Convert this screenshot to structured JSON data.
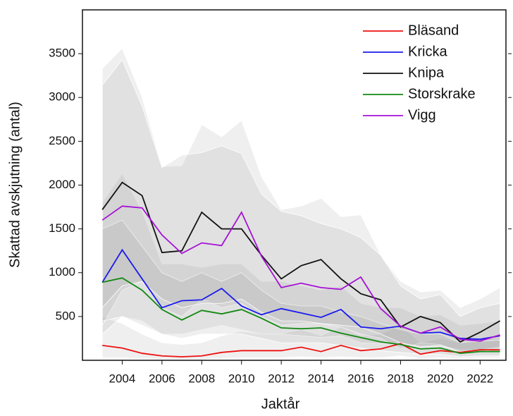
{
  "chart_data": {
    "type": "line",
    "xlabel": "Jaktår",
    "ylabel": "Skattad avskjutning (antal)",
    "x": [
      2003,
      2004,
      2005,
      2006,
      2007,
      2008,
      2009,
      2010,
      2011,
      2012,
      2013,
      2014,
      2015,
      2016,
      2017,
      2018,
      2019,
      2020,
      2021,
      2022,
      2023
    ],
    "xlim": [
      2002,
      2023.3
    ],
    "xticks": [
      2004,
      2006,
      2008,
      2010,
      2012,
      2014,
      2016,
      2018,
      2020,
      2022
    ],
    "ylim": [
      0,
      4000
    ],
    "yticks": [
      500,
      1000,
      1500,
      2000,
      2500,
      3000,
      3500
    ],
    "legend": "upper-right",
    "band_color": "#808080",
    "series": [
      {
        "name": "Bläsand",
        "color": "#ee1111",
        "values": [
          170,
          140,
          80,
          50,
          40,
          50,
          90,
          110,
          110,
          110,
          150,
          100,
          170,
          110,
          130,
          190,
          70,
          110,
          90,
          120,
          120
        ],
        "lower": [
          30,
          30,
          20,
          10,
          10,
          10,
          20,
          30,
          30,
          30,
          40,
          30,
          40,
          30,
          30,
          50,
          20,
          30,
          20,
          30,
          30
        ],
        "upper": [
          500,
          420,
          300,
          200,
          180,
          200,
          280,
          330,
          300,
          300,
          350,
          280,
          380,
          280,
          300,
          400,
          200,
          250,
          200,
          250,
          250
        ]
      },
      {
        "name": "Kricka",
        "color": "#1a1aee",
        "values": [
          890,
          1260,
          930,
          600,
          680,
          690,
          820,
          620,
          520,
          590,
          540,
          490,
          580,
          380,
          360,
          390,
          310,
          320,
          250,
          240,
          280
        ],
        "lower": [
          300,
          500,
          450,
          300,
          300,
          350,
          400,
          350,
          300,
          300,
          280,
          260,
          280,
          200,
          190,
          200,
          160,
          170,
          120,
          120,
          150
        ],
        "upper": [
          1800,
          2130,
          1700,
          1100,
          1100,
          1060,
          1100,
          1100,
          900,
          900,
          850,
          800,
          850,
          650,
          600,
          600,
          500,
          520,
          400,
          420,
          450
        ]
      },
      {
        "name": "Knipa",
        "color": "#111111",
        "values": [
          1720,
          2030,
          1880,
          1230,
          1250,
          1690,
          1500,
          1500,
          1200,
          930,
          1080,
          1150,
          930,
          760,
          690,
          380,
          500,
          430,
          210,
          320,
          450
        ],
        "lower": [
          400,
          800,
          900,
          600,
          500,
          700,
          600,
          650,
          500,
          400,
          420,
          420,
          380,
          300,
          250,
          130,
          200,
          180,
          100,
          120,
          150
        ],
        "upper": [
          3330,
          3560,
          3000,
          2210,
          2220,
          2690,
          2550,
          2740,
          2100,
          1720,
          1760,
          1850,
          1640,
          1660,
          1200,
          900,
          780,
          800,
          600,
          700,
          830
        ]
      },
      {
        "name": "Storskrake",
        "color": "#118811",
        "values": [
          890,
          940,
          800,
          580,
          460,
          570,
          530,
          580,
          480,
          370,
          360,
          370,
          310,
          260,
          210,
          180,
          130,
          140,
          80,
          100,
          100
        ],
        "lower": [
          450,
          500,
          400,
          300,
          250,
          300,
          300,
          300,
          250,
          200,
          200,
          200,
          170,
          140,
          110,
          90,
          70,
          70,
          40,
          50,
          50
        ],
        "upper": [
          1500,
          1600,
          1300,
          1000,
          900,
          1000,
          900,
          1000,
          800,
          650,
          620,
          620,
          550,
          500,
          420,
          350,
          300,
          300,
          200,
          220,
          230
        ]
      },
      {
        "name": "Vigg",
        "color": "#a611d6",
        "values": [
          1600,
          1760,
          1740,
          1430,
          1220,
          1340,
          1310,
          1690,
          1190,
          830,
          880,
          830,
          810,
          950,
          590,
          390,
          310,
          380,
          240,
          220,
          290
        ],
        "lower": [
          600,
          850,
          900,
          700,
          600,
          650,
          650,
          700,
          550,
          450,
          450,
          420,
          400,
          380,
          300,
          200,
          150,
          170,
          100,
          100,
          130
        ],
        "upper": [
          3140,
          3430,
          2900,
          2200,
          2340,
          2370,
          2450,
          2360,
          1900,
          1700,
          1650,
          1560,
          1500,
          1400,
          1200,
          850,
          700,
          750,
          500,
          600,
          650
        ]
      }
    ]
  }
}
